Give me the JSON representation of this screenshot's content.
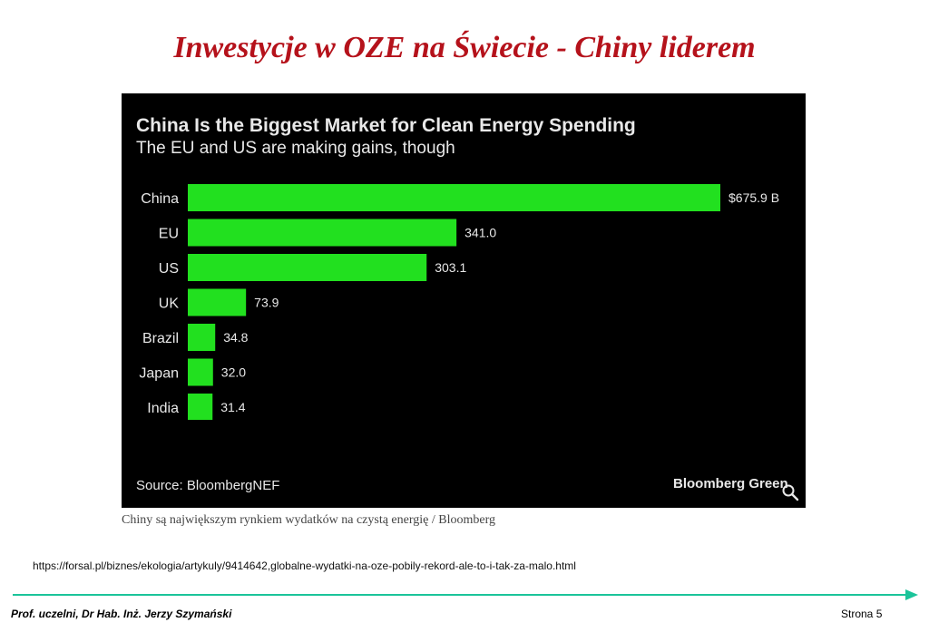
{
  "slide": {
    "title": "Inwestycje w OZE na Świecie - Chiny liderem",
    "caption": "Chiny są największym rynkiem wydatków na czystą energię / Bloomberg",
    "source_url": "https://forsal.pl/biznes/ekologia/artykuly/9414642,globalne-wydatki-na-oze-pobily-rekord-ale-to-i-tak-za-malo.html",
    "author": "Prof. uczelni, Dr Hab. Inż.  Jerzy Szymański",
    "page_number": "Strona 5",
    "accent_color": "#1bc49a",
    "title_color": "#b5121b"
  },
  "chart_data": {
    "type": "bar",
    "orientation": "horizontal",
    "title": "China Is the Biggest Market for Clean Energy Spending",
    "subtitle": "The EU and US are making gains, though",
    "categories": [
      "China",
      "EU",
      "US",
      "UK",
      "Brazil",
      "Japan",
      "India"
    ],
    "values": [
      675.9,
      341.0,
      303.1,
      73.9,
      34.8,
      32.0,
      31.4
    ],
    "value_labels": [
      "$675.9 B",
      "341.0",
      "303.1",
      "73.9",
      "34.8",
      "32.0",
      "31.4"
    ],
    "xlim": [
      0,
      675.9
    ],
    "grid": false,
    "legend": "none",
    "bar_color": "#22e01f",
    "background_color": "#000000",
    "source": "Source: BloombergNEF",
    "brand": "Bloomberg Green",
    "brand_icon": "search-icon"
  }
}
